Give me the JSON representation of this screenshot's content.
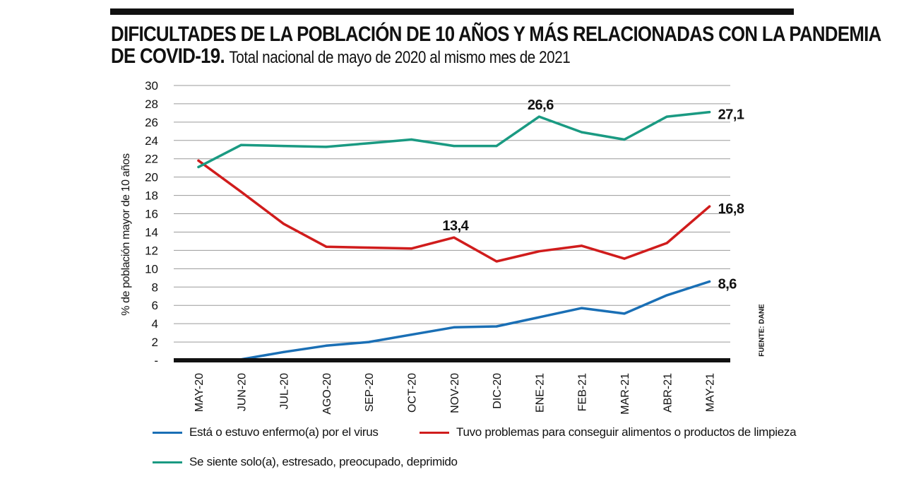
{
  "title": {
    "bold": "DIFICULTADES DE LA POBLACIÓN DE 10 AÑOS Y MÁS RELACIONADAS CON LA PANDEMIA",
    "bold_line2": "DE COVID-19.",
    "subtitle": "Total nacional de mayo de 2020 al mismo mes de 2021"
  },
  "source": "FUENTE: DANE",
  "chart_data": {
    "type": "line",
    "categories": [
      "MAY-20",
      "JUN-20",
      "JUL-20",
      "AGO-20",
      "SEP-20",
      "OCT-20",
      "NOV-20",
      "DIC-20",
      "ENE-21",
      "FEB-21",
      "MAR-21",
      "ABR-21",
      "MAY-21"
    ],
    "ylabel": "% de población mayor de 10 años",
    "ylim": [
      0,
      30
    ],
    "yticks": [
      "-",
      "2",
      "4",
      "6",
      "8",
      "10",
      "12",
      "14",
      "16",
      "18",
      "20",
      "22",
      "24",
      "26",
      "28",
      "30"
    ],
    "grid": true,
    "legend_position": "bottom",
    "series": [
      {
        "name": "Está o estuvo enfermo(a) por el virus",
        "color": "#1a6fb5",
        "values": [
          0.1,
          0.1,
          0.9,
          1.6,
          2.0,
          2.8,
          3.6,
          3.7,
          4.7,
          5.7,
          5.1,
          7.1,
          8.6
        ]
      },
      {
        "name": "Tuvo problemas para conseguir alimentos o productos de limpieza",
        "color": "#d01c1c",
        "values": [
          21.8,
          18.4,
          14.9,
          12.4,
          12.3,
          12.2,
          13.4,
          10.8,
          11.9,
          12.5,
          11.1,
          12.8,
          16.8
        ]
      },
      {
        "name": "Se siente solo(a), estresado, preocupado, deprimido",
        "color": "#1a9a82",
        "values": [
          21.1,
          23.5,
          23.4,
          23.3,
          23.7,
          24.1,
          23.4,
          23.4,
          26.6,
          24.9,
          24.1,
          26.6,
          27.1
        ]
      }
    ],
    "annotations": [
      {
        "series": 1,
        "index": 6,
        "text": "13,4"
      },
      {
        "series": 2,
        "index": 8,
        "text": "26,6"
      },
      {
        "series": 2,
        "index": 12,
        "text": "27,1"
      },
      {
        "series": 1,
        "index": 12,
        "text": "16,8"
      },
      {
        "series": 0,
        "index": 12,
        "text": "8,6"
      }
    ]
  }
}
